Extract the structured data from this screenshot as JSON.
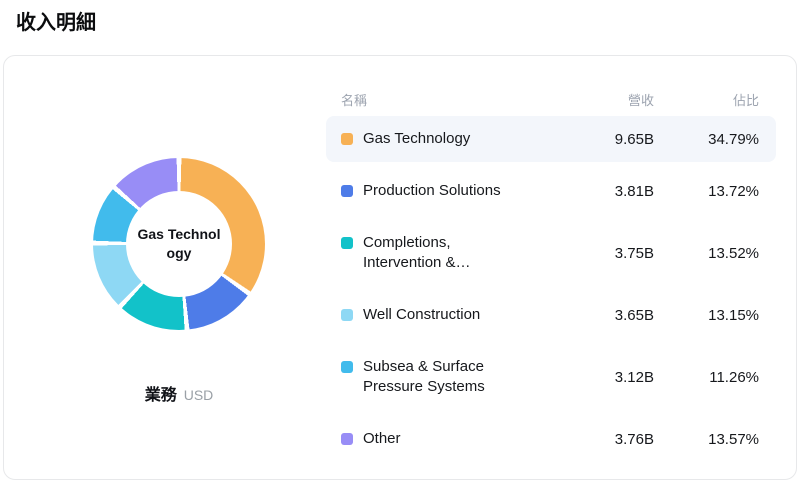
{
  "page": {
    "title": "收入明細"
  },
  "card": {
    "chart": {
      "center_label": "Gas Technology",
      "caption": "業務",
      "unit": "USD"
    },
    "table": {
      "headers": {
        "name": "名稱",
        "revenue": "營收",
        "share": "佔比"
      },
      "rows": [
        {
          "name": "Gas Technology",
          "revenue": "9.65B",
          "share": "34.79%",
          "color": "#f7b155",
          "highlighted": true
        },
        {
          "name": "Production Solutions",
          "revenue": "3.81B",
          "share": "13.72%",
          "color": "#4e7ce8",
          "highlighted": false
        },
        {
          "name": "Completions, Intervention &…",
          "revenue": "3.75B",
          "share": "13.52%",
          "color": "#12c2c9",
          "highlighted": false
        },
        {
          "name": "Well Construction",
          "revenue": "3.65B",
          "share": "13.15%",
          "color": "#8ed8f4",
          "highlighted": false
        },
        {
          "name": "Subsea & Surface Pressure Systems",
          "revenue": "3.12B",
          "share": "11.26%",
          "color": "#41bbec",
          "highlighted": false
        },
        {
          "name": "Other",
          "revenue": "3.76B",
          "share": "13.57%",
          "color": "#988df6",
          "highlighted": false
        }
      ]
    }
  },
  "chart_data": {
    "type": "pie",
    "donut": true,
    "title": "收入明細",
    "center_label": "Gas Technology",
    "unit": "USD",
    "legend_position": "right-table",
    "categories": [
      "Gas Technology",
      "Production Solutions",
      "Completions, Intervention &…",
      "Well Construction",
      "Subsea & Surface Pressure Systems",
      "Other"
    ],
    "values_B": [
      9.65,
      3.81,
      3.75,
      3.65,
      3.12,
      3.76
    ],
    "shares_pct": [
      34.79,
      13.72,
      13.52,
      13.15,
      11.26,
      13.57
    ],
    "colors": [
      "#f7b155",
      "#4e7ce8",
      "#12c2c9",
      "#8ed8f4",
      "#41bbec",
      "#988df6"
    ],
    "start_angle_deg": 0,
    "direction": "clockwise"
  }
}
